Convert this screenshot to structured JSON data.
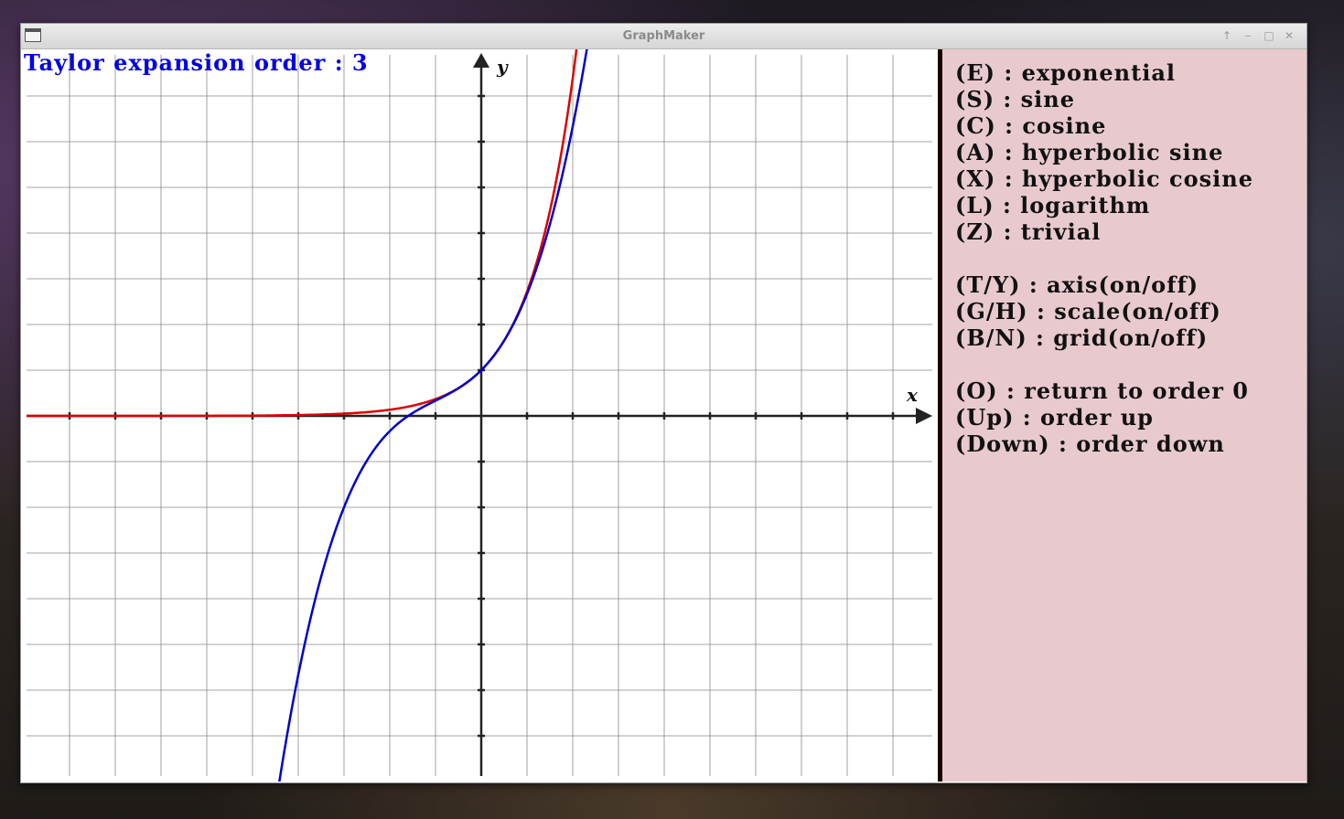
{
  "window": {
    "title": "GraphMaker",
    "buttons": {
      "up": "↑",
      "minimize": "‒",
      "maximize": "□",
      "close": "✕"
    }
  },
  "graph": {
    "order_label": "Taylor expansion order : 3",
    "x_axis_label": "x",
    "y_axis_label": "y",
    "colors": {
      "exact": "#dd0000",
      "taylor": "#0000cc",
      "axis": "#222222",
      "grid": "#888888"
    }
  },
  "chart_data": {
    "type": "line",
    "title": "",
    "xlabel": "x",
    "ylabel": "y",
    "xlim": [
      -10,
      10
    ],
    "ylim": [
      -10,
      10
    ],
    "grid": true,
    "series": [
      {
        "function": "exp(x)",
        "order": null,
        "color": "#dd0000"
      },
      {
        "function": "1 + x + x^2/2 + x^3/6",
        "order": 3,
        "color": "#0000cc"
      }
    ]
  },
  "panel": {
    "items": [
      {
        "key": "(E)",
        "text": " : exponential"
      },
      {
        "key": "(S)",
        "text": " : sine"
      },
      {
        "key": "(C)",
        "text": " : cosine"
      },
      {
        "key": "(A)",
        "text": " : hyperbolic sine"
      },
      {
        "key": "(X)",
        "text": " : hyperbolic cosine"
      },
      {
        "key": "(L)",
        "text": " : logarithm"
      },
      {
        "key": "(Z)",
        "text": " : trivial"
      },
      {
        "gap": true
      },
      {
        "key": "(T/Y)",
        "text": " : axis(on/off)"
      },
      {
        "key": "(G/H)",
        "text": " : scale(on/off)"
      },
      {
        "key": "(B/N)",
        "text": " : grid(on/off)"
      },
      {
        "gap": true
      },
      {
        "key": "(O)",
        "text": " : return to order 0"
      },
      {
        "key": "(Up)",
        "text": " : order up"
      },
      {
        "key": "(Down)",
        "text": " : order down"
      }
    ]
  }
}
